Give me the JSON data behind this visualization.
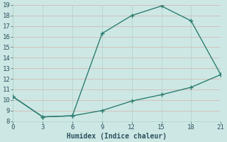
{
  "x": [
    0,
    3,
    6,
    9,
    12,
    15,
    18,
    21
  ],
  "y_upper": [
    10.3,
    8.4,
    8.5,
    16.3,
    18.0,
    18.9,
    17.5,
    12.4
  ],
  "y_lower": [
    10.3,
    8.4,
    8.5,
    9.0,
    9.9,
    10.5,
    11.2,
    12.4
  ],
  "line_color": "#2e7d72",
  "bg_color": "#cde8e4",
  "grid_color": "#b0d0ca",
  "grid_color_red": "#d4b0b0",
  "xlabel": "Humidex (Indice chaleur)",
  "xlim": [
    0,
    21
  ],
  "ylim": [
    8,
    19
  ],
  "xticks": [
    0,
    3,
    6,
    9,
    12,
    15,
    18,
    21
  ],
  "yticks": [
    8,
    9,
    10,
    11,
    12,
    13,
    14,
    15,
    16,
    17,
    18,
    19
  ],
  "font_color": "#2e5060",
  "marker_size": 3.5,
  "line_width": 1.0,
  "tick_fontsize": 6.5,
  "xlabel_fontsize": 7.0
}
